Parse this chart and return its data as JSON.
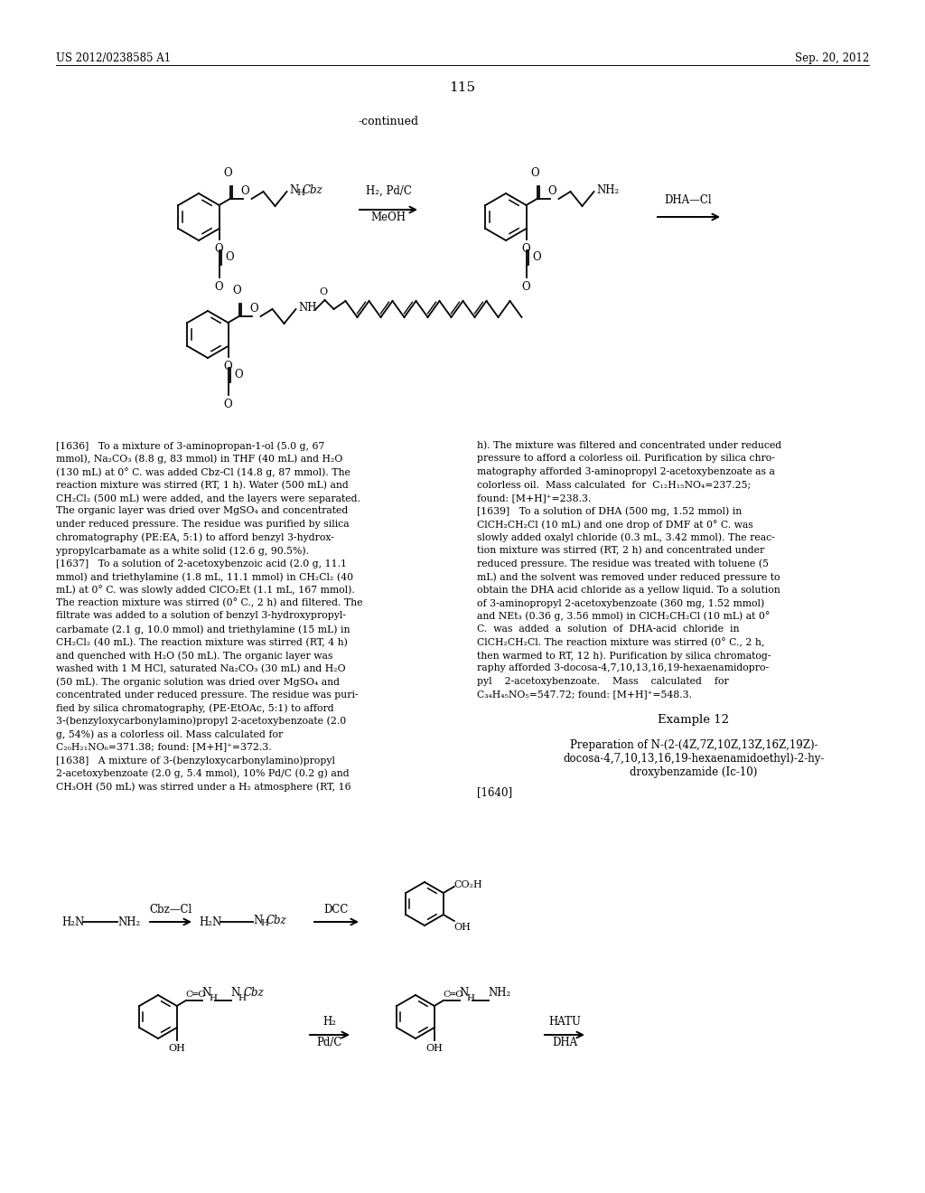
{
  "page_number": "115",
  "header_left": "US 2012/0238585 A1",
  "header_right": "Sep. 20, 2012",
  "continued_label": "-continued",
  "background_color": "#ffffff",
  "text_color": "#000000",
  "left_col_lines": [
    "[1636]   To a mixture of 3-aminopropan-1-ol (5.0 g, 67",
    "mmol), Na₂CO₃ (8.8 g, 83 mmol) in THF (40 mL) and H₂O",
    "(130 mL) at 0° C. was added Cbz-Cl (14.8 g, 87 mmol). The",
    "reaction mixture was stirred (RT, 1 h). Water (500 mL) and",
    "CH₂Cl₂ (500 mL) were added, and the layers were separated.",
    "The organic layer was dried over MgSO₄ and concentrated",
    "under reduced pressure. The residue was purified by silica",
    "chromatography (PE:EA, 5:1) to afford benzyl 3-hydrox-",
    "ypropylcarbamate as a white solid (12.6 g, 90.5%).",
    "[1637]   To a solution of 2-acetoxybenzoic acid (2.0 g, 11.1",
    "mmol) and triethylamine (1.8 mL, 11.1 mmol) in CH₂Cl₂ (40",
    "mL) at 0° C. was slowly added ClCO₂Et (1.1 mL, 167 mmol).",
    "The reaction mixture was stirred (0° C., 2 h) and filtered. The",
    "filtrate was added to a solution of benzyl 3-hydroxypropyl-",
    "carbamate (2.1 g, 10.0 mmol) and triethylamine (15 mL) in",
    "CH₂Cl₂ (40 mL). The reaction mixture was stirred (RT, 4 h)",
    "and quenched with H₂O (50 mL). The organic layer was",
    "washed with 1 M HCl, saturated Na₂CO₃ (30 mL) and H₂O",
    "(50 mL). The organic solution was dried over MgSO₄ and",
    "concentrated under reduced pressure. The residue was puri-",
    "fied by silica chromatography, (PE-EtOAc, 5:1) to afford",
    "3-(benzyloxycarbonylamino)propyl 2-acetoxybenzoate (2.0",
    "g, 54%) as a colorless oil. Mass calculated for",
    "C₂₀H₂₁NO₆=371.38; found: [M+H]⁺=372.3.",
    "[1638]   A mixture of 3-(benzyloxycarbonylamino)propyl",
    "2-acetoxybenzoate (2.0 g, 5.4 mmol), 10% Pd/C (0.2 g) and",
    "CH₃OH (50 mL) was stirred under a H₂ atmosphere (RT, 16"
  ],
  "right_col_lines": [
    "h). The mixture was filtered and concentrated under reduced",
    "pressure to afford a colorless oil. Purification by silica chro-",
    "matography afforded 3-aminopropyl 2-acetoxybenzoate as a",
    "colorless oil.  Mass calculated  for  C₁₂H₁₅NO₄=237.25;",
    "found: [M+H]⁺=238.3.",
    "[1639]   To a solution of DHA (500 mg, 1.52 mmol) in",
    "ClCH₂CH₂Cl (10 mL) and one drop of DMF at 0° C. was",
    "slowly added oxalyl chloride (0.3 mL, 3.42 mmol). The reac-",
    "tion mixture was stirred (RT, 2 h) and concentrated under",
    "reduced pressure. The residue was treated with toluene (5",
    "mL) and the solvent was removed under reduced pressure to",
    "obtain the DHA acid chloride as a yellow liquid. To a solution",
    "of 3-aminopropyl 2-acetoxybenzoate (360 mg, 1.52 mmol)",
    "and NEt₃ (0.36 g, 3.56 mmol) in ClCH₂CH₂Cl (10 mL) at 0°",
    "C.  was  added  a  solution  of  DHA-acid  chloride  in",
    "ClCH₂CH₂Cl. The reaction mixture was stirred (0° C., 2 h,",
    "then warmed to RT, 12 h). Purification by silica chromatog-",
    "raphy afforded 3-docosa-4,7,10,13,16,19-hexaenamidopro-",
    "pyl    2-acetoxybenzoate.    Mass    calculated    for",
    "C₃₄H₄₅NO₅=547.72; found: [M+H]⁺=548.3."
  ],
  "example12_header": "Example 12",
  "example12_lines": [
    "Preparation of N-(2-(4Z,7Z,10Z,13Z,16Z,19Z)-",
    "docosa-4,7,10,13,16,19-hexaenamidoethyl)-2-hy-",
    "droxybenzamide (Ic-10)"
  ],
  "paragraph1640": "[1640]"
}
